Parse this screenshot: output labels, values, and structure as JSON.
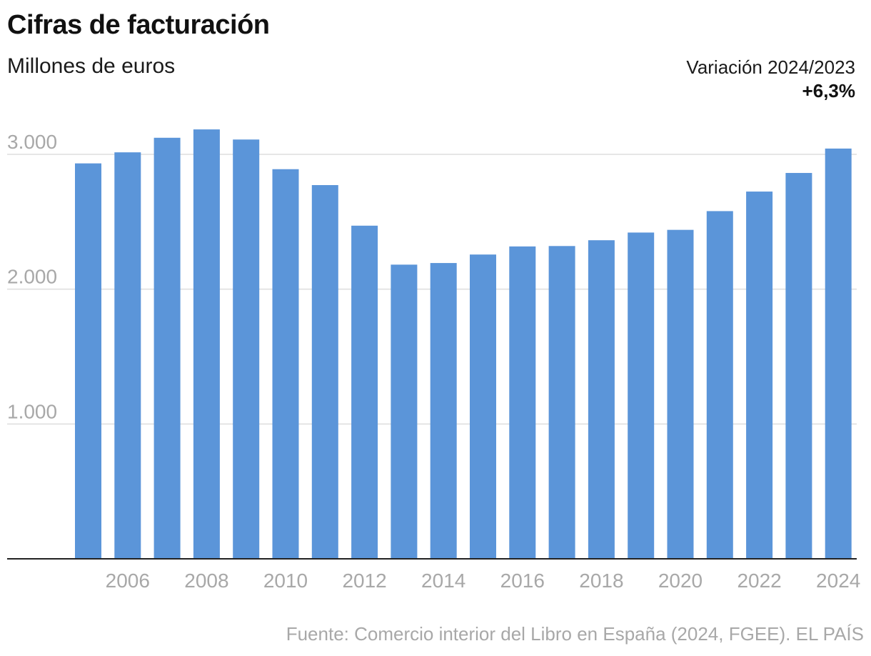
{
  "title": "Cifras de facturación",
  "subtitle": "Millones de euros",
  "variation": {
    "label": "Variación 2024/2023",
    "value": "+6,3%"
  },
  "source": "Fuente: Comercio interior del Libro en España (2024, FGEE). EL PAÍS",
  "colors": {
    "bar": "#5b95d9",
    "grid": "#dddddd",
    "axis": "#222222",
    "tick_label": "#a8a8a8"
  },
  "chart_data": {
    "type": "bar",
    "title": "Cifras de facturación",
    "ylabel": "",
    "xlabel": "",
    "categories": [
      "2005",
      "2006",
      "2007",
      "2008",
      "2009",
      "2010",
      "2011",
      "2012",
      "2013",
      "2014",
      "2015",
      "2016",
      "2017",
      "2018",
      "2019",
      "2020",
      "2021",
      "2022",
      "2023",
      "2024"
    ],
    "values": [
      2933,
      3015,
      3123,
      3185,
      3110,
      2890,
      2772,
      2471,
      2182,
      2194,
      2257,
      2317,
      2320,
      2363,
      2420,
      2440,
      2579,
      2724,
      2862,
      3043
    ],
    "x_tick_labels": [
      "2006",
      "2008",
      "2010",
      "2012",
      "2014",
      "2016",
      "2018",
      "2020",
      "2022",
      "2024"
    ],
    "y_ticks": [
      1000,
      2000,
      3000
    ],
    "y_tick_labels": [
      "1.000",
      "2.000",
      "3.000"
    ],
    "ylim": [
      0,
      3000
    ],
    "grid": true,
    "legend": "none"
  }
}
